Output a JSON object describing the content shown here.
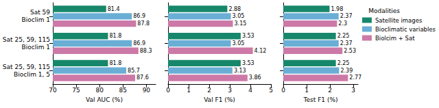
{
  "chart_data": [
    {
      "type": "bar",
      "orientation": "horizontal",
      "xlabel": "Val AUC (%)",
      "categories": [
        "Sat 59\nBioclim 1",
        "Sat 25, 59, 115\nBioclim 1",
        "Sat 25, 59, 115\nBioclim 1, 5"
      ],
      "series": [
        {
          "name": "Satellite images",
          "color": "#17876b",
          "values": [
            81.4,
            81.8,
            81.8
          ]
        },
        {
          "name": "Bioclimatic variables",
          "color": "#6aaed6",
          "values": [
            86.9,
            86.9,
            85.7
          ]
        },
        {
          "name": "Biolcim + Sat",
          "color": "#cc79a7",
          "values": [
            87.8,
            88.3,
            87.6
          ]
        }
      ],
      "xlim": [
        70,
        92
      ],
      "xticks": [
        70,
        75,
        80,
        85,
        90
      ],
      "data_labels": true
    },
    {
      "type": "bar",
      "orientation": "horizontal",
      "xlabel": "Val F1 (%)",
      "categories": [
        null,
        null,
        null
      ],
      "series": [
        {
          "name": "Satellite images",
          "color": "#17876b",
          "values": [
            2.88,
            3.53,
            3.53
          ]
        },
        {
          "name": "Bioclimatic variables",
          "color": "#6aaed6",
          "values": [
            3.05,
            3.05,
            3.13
          ]
        },
        {
          "name": "Biolcim + Sat",
          "color": "#cc79a7",
          "values": [
            3.15,
            4.12,
            3.86
          ]
        }
      ],
      "xlim": [
        0,
        5
      ],
      "xticks": [
        0,
        1,
        2,
        3,
        4,
        5
      ],
      "data_labels": true
    },
    {
      "type": "bar",
      "orientation": "horizontal",
      "xlabel": "Test F1 (%)",
      "categories": [
        null,
        null,
        null
      ],
      "series": [
        {
          "name": "Satellite images",
          "color": "#17876b",
          "values": [
            1.98,
            2.25,
            2.25
          ]
        },
        {
          "name": "Bioclimatic variables",
          "color": "#6aaed6",
          "values": [
            2.37,
            2.37,
            2.39
          ]
        },
        {
          "name": "Biolcim + Sat",
          "color": "#cc79a7",
          "values": [
            2.3,
            2.53,
            2.77
          ]
        }
      ],
      "xlim": [
        0,
        3.2
      ],
      "xticks": [
        0,
        1,
        2,
        3
      ],
      "data_labels": true,
      "legend": "right",
      "legend_title": "Modalities"
    }
  ]
}
